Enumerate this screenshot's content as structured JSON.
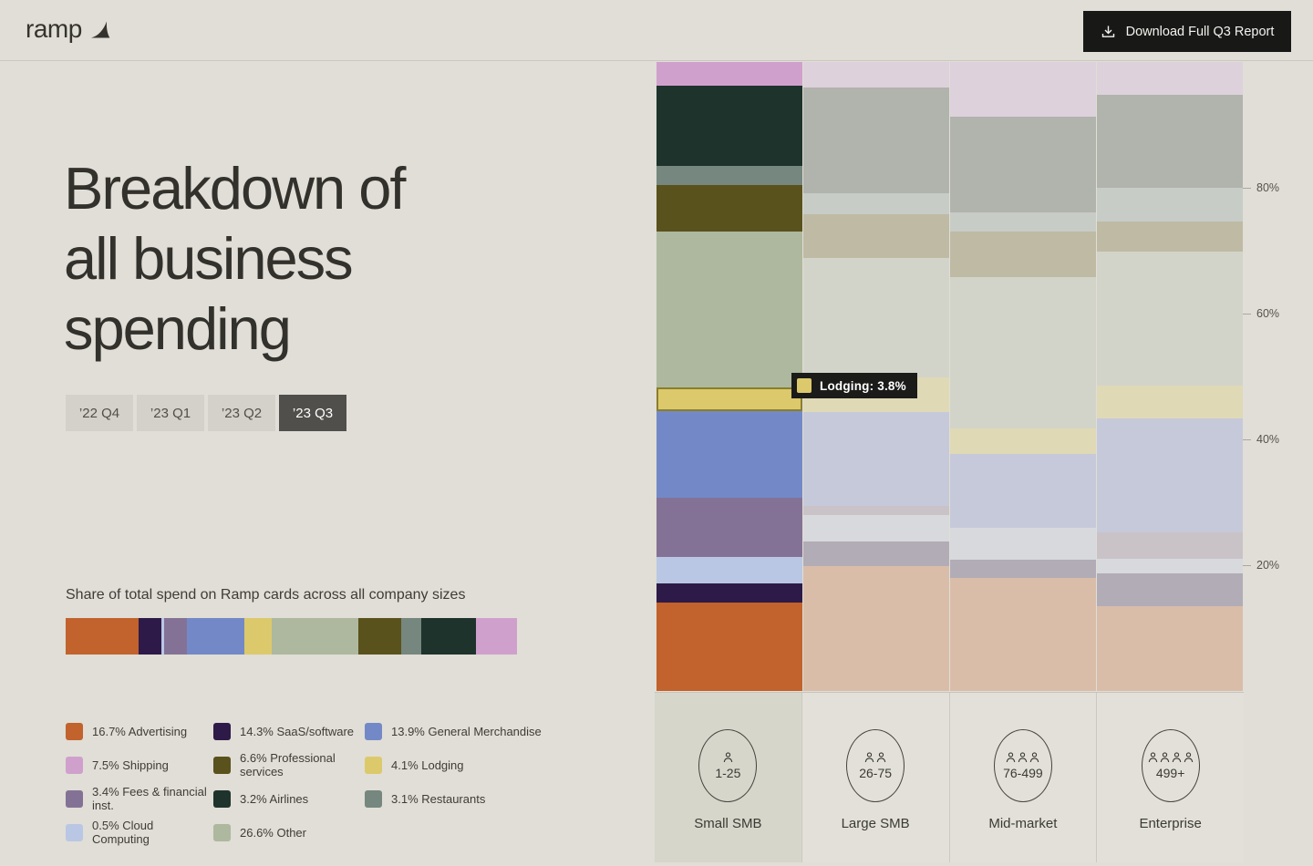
{
  "header": {
    "logo_text": "ramp",
    "download_button_label": "Download Full Q3 Report"
  },
  "hero": {
    "title": "Breakdown of\nall business\nspending"
  },
  "tabs": {
    "items": [
      {
        "id": "22-q4",
        "label": "’22 Q4",
        "active": false
      },
      {
        "id": "23-q1",
        "label": "’23 Q1",
        "active": false
      },
      {
        "id": "23-q2",
        "label": "’23 Q2",
        "active": false
      },
      {
        "id": "23-q3",
        "label": "’23 Q3",
        "active": true
      }
    ]
  },
  "overview": {
    "caption": "Share of total spend on Ramp cards across all company sizes",
    "segments": [
      {
        "key": "advertising",
        "width_pct": 16.1
      },
      {
        "key": "saas",
        "width_pct": 5.1
      },
      {
        "key": "cloud",
        "width_pct": 0.7
      },
      {
        "key": "fees",
        "width_pct": 5.0
      },
      {
        "key": "general_merchandise",
        "width_pct": 12.8
      },
      {
        "key": "lodging",
        "width_pct": 6.0
      },
      {
        "key": "other",
        "width_pct": 19.2
      },
      {
        "key": "professional_services",
        "width_pct": 9.5
      },
      {
        "key": "restaurants",
        "width_pct": 4.4
      },
      {
        "key": "airlines",
        "width_pct": 12.1
      },
      {
        "key": "shipping",
        "width_pct": 9.1
      }
    ]
  },
  "legend": {
    "items": [
      {
        "key": "advertising",
        "pct": "16.7%",
        "label": "Advertising"
      },
      {
        "key": "saas",
        "pct": "14.3%",
        "label": "SaaS/software"
      },
      {
        "key": "general_merchandise",
        "pct": "13.9%",
        "label": "General Merchandise"
      },
      {
        "key": "shipping",
        "pct": "7.5%",
        "label": "Shipping"
      },
      {
        "key": "professional_services",
        "pct": "6.6%",
        "label": "Professional services"
      },
      {
        "key": "lodging",
        "pct": "4.1%",
        "label": "Lodging"
      },
      {
        "key": "fees",
        "pct": "3.4%",
        "label": "Fees & financial inst."
      },
      {
        "key": "airlines",
        "pct": "3.2%",
        "label": "Airlines"
      },
      {
        "key": "restaurants",
        "pct": "3.1%",
        "label": "Restaurants"
      },
      {
        "key": "cloud",
        "pct": "0.5%",
        "label": "Cloud Computing"
      },
      {
        "key": "other",
        "pct": "26.6%",
        "label": "Other"
      }
    ]
  },
  "palette": {
    "advertising": {
      "vivid": "#c2622c",
      "faded": "#d9bda9"
    },
    "saas": {
      "vivid": "#2e1a48",
      "faded": "#b2acb6"
    },
    "cloud": {
      "vivid": "#bac7e4",
      "faded": "#d7d9dd"
    },
    "fees": {
      "vivid": "#847296",
      "faded": "#c9c3c8"
    },
    "general_merchandise": {
      "vivid": "#7389c7",
      "faded": "#c6c9d9"
    },
    "lodging": {
      "vivid": "#dcc96c",
      "faded": "#dfd9b6"
    },
    "other": {
      "vivid": "#adb89e",
      "faded": "#d3d4c9"
    },
    "professional_services": {
      "vivid": "#5a521c",
      "faded": "#bfbaa4"
    },
    "restaurants": {
      "vivid": "#75877e",
      "faded": "#c7ccc6"
    },
    "airlines": {
      "vivid": "#1e332c",
      "faded": "#b1b3ad"
    },
    "shipping": {
      "vivid": "#d0a0cd",
      "faded": "#ddd1db"
    }
  },
  "tooltip": {
    "series": "lodging",
    "label": "Lodging: 3.8%"
  },
  "chart_data": {
    "type": "bar",
    "variant": "100%-stacked-columns",
    "title": "Breakdown of all business spending",
    "categories": [
      "Small SMB",
      "Large SMB",
      "Mid-market",
      "Enterprise"
    ],
    "category_ranges": [
      "1-25",
      "26-75",
      "76-499",
      "499+"
    ],
    "ylim": [
      0,
      100
    ],
    "y_ticks": [
      80,
      60,
      40,
      20
    ],
    "y_tick_labels": [
      "80%",
      "60%",
      "40%",
      "20%"
    ],
    "legend_position": "bottom-left",
    "grid": false,
    "stack_order": "top-to-bottom",
    "series": [
      {
        "key": "shipping",
        "name": "Shipping",
        "values": [
          3.7,
          4.0,
          8.7,
          5.2
        ]
      },
      {
        "key": "airlines",
        "name": "Airlines",
        "values": [
          12.8,
          16.8,
          15.2,
          14.8
        ]
      },
      {
        "key": "restaurants",
        "name": "Restaurants",
        "values": [
          3.1,
          3.4,
          3.1,
          5.4
        ]
      },
      {
        "key": "professional_services",
        "name": "Professional services",
        "values": [
          7.4,
          6.9,
          7.2,
          4.7
        ]
      },
      {
        "key": "other",
        "name": "Other",
        "values": [
          24.7,
          19.0,
          24.1,
          21.4
        ]
      },
      {
        "key": "lodging",
        "name": "Lodging",
        "values": [
          3.8,
          5.5,
          4.0,
          5.2
        ]
      },
      {
        "key": "general_merchandise",
        "name": "General Merchandise",
        "values": [
          13.8,
          15.0,
          11.8,
          18.1
        ]
      },
      {
        "key": "fees",
        "name": "Fees & financial inst.",
        "values": [
          9.4,
          1.4,
          0,
          4.2
        ]
      },
      {
        "key": "cloud",
        "name": "Cloud Computing",
        "values": [
          4.2,
          4.3,
          5.0,
          2.3
        ]
      },
      {
        "key": "saas",
        "name": "SaaS/software",
        "values": [
          3.0,
          3.8,
          2.9,
          5.2
        ]
      },
      {
        "key": "advertising",
        "name": "Advertising",
        "values": [
          14.1,
          19.9,
          18.0,
          13.5
        ]
      }
    ],
    "highlight": {
      "column": 0,
      "series": "lodging"
    },
    "columns": [
      {
        "key": "small-smb",
        "label": "Small SMB",
        "range": "1-25",
        "persons": 1,
        "highlighted": true
      },
      {
        "key": "large-smb",
        "label": "Large SMB",
        "range": "26-75",
        "persons": 2,
        "highlighted": false
      },
      {
        "key": "mid-market",
        "label": "Mid-market",
        "range": "76-499",
        "persons": 3,
        "highlighted": false
      },
      {
        "key": "enterprise",
        "label": "Enterprise",
        "range": "499+",
        "persons": 4,
        "highlighted": false
      }
    ]
  }
}
